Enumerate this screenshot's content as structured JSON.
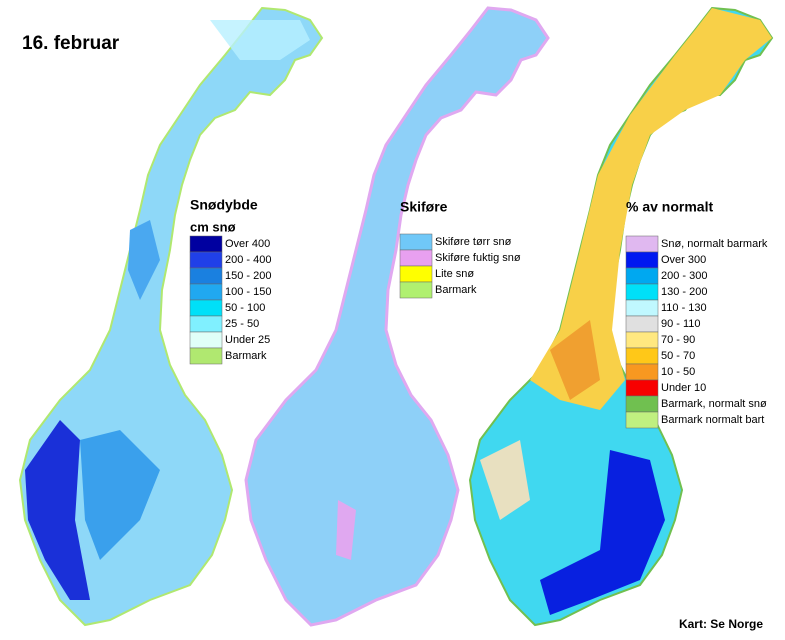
{
  "date": "16. februar",
  "credit": "Kart: Se Norge",
  "legends": [
    {
      "title": "Snødybde",
      "subtitle": "cm snø",
      "items": [
        {
          "label": "Over 400",
          "color": "#0000a0"
        },
        {
          "label": "200 - 400",
          "color": "#2040e8"
        },
        {
          "label": "150 - 200",
          "color": "#1a80e0"
        },
        {
          "label": "100 - 150",
          "color": "#20a8f0"
        },
        {
          "label": "50 - 100",
          "color": "#00e0f8"
        },
        {
          "label": "25 - 50",
          "color": "#80f0ff"
        },
        {
          "label": "Under 25",
          "color": "#e0fff8"
        },
        {
          "label": "Barmark",
          "color": "#b0e870"
        }
      ]
    },
    {
      "title": "Skiføre",
      "items": [
        {
          "label": "Skiføre tørr snø",
          "color": "#70c8f8"
        },
        {
          "label": "Skiføre fuktig snø",
          "color": "#e8a0f0"
        },
        {
          "label": "Lite snø",
          "color": "#ffff00"
        },
        {
          "label": "Barmark",
          "color": "#b0f070"
        }
      ]
    },
    {
      "title": "% av normalt",
      "items": [
        {
          "label": "Snø, normalt barmark",
          "color": "#e0b8f0"
        },
        {
          "label": "Over 300",
          "color": "#0018f0"
        },
        {
          "label": "200 - 300",
          "color": "#00a8f0"
        },
        {
          "label": "130 - 200",
          "color": "#00e0f8"
        },
        {
          "label": "110 - 130",
          "color": "#c0f8ff"
        },
        {
          "label": "90 - 110",
          "color": "#e0e0e0"
        },
        {
          "label": "70 - 90",
          "color": "#ffe880"
        },
        {
          "label": "50 - 70",
          "color": "#ffc818"
        },
        {
          "label": "10 - 50",
          "color": "#f89820"
        },
        {
          "label": "Under 10",
          "color": "#f80000"
        },
        {
          "label": "Barmark, normalt snø",
          "color": "#70c050"
        },
        {
          "label": "Barmark normalt bart",
          "color": "#c0f080"
        }
      ]
    }
  ]
}
